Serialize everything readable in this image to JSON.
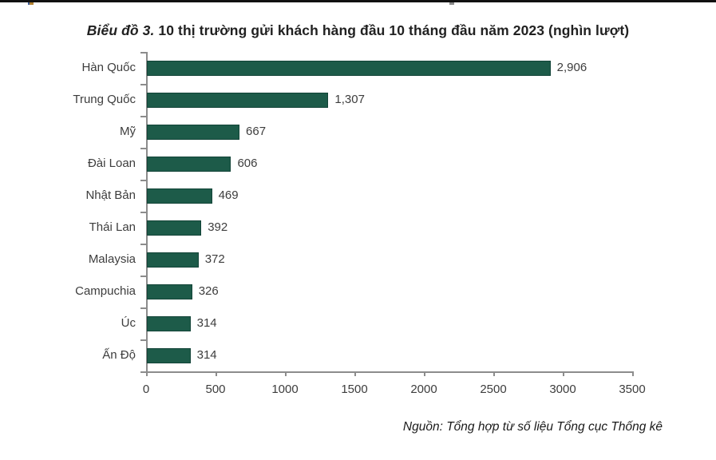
{
  "title": {
    "prefix": "Biểu đồ 3.",
    "rest": " 10 thị trường gửi khách hàng đầu 10 tháng đầu năm 2023 (nghìn lượt)"
  },
  "source_note": "Nguồn: Tổng hợp từ số liệu Tổng cục Thống kê",
  "chart_data": {
    "type": "bar",
    "orientation": "horizontal",
    "title": "Biểu đồ 3. 10 thị trường gửi khách hàng đầu 10 tháng đầu năm 2023 (nghìn lượt)",
    "categories": [
      "Hàn Quốc",
      "Trung Quốc",
      "Mỹ",
      "Đài Loan",
      "Nhật Bản",
      "Thái Lan",
      "Malaysia",
      "Campuchia",
      "Úc",
      "Ấn Độ"
    ],
    "values": [
      2906,
      1307,
      667,
      606,
      469,
      392,
      372,
      326,
      314,
      314
    ],
    "value_labels": [
      "2,906",
      "1,307",
      "667",
      "606",
      "469",
      "392",
      "372",
      "326",
      "314",
      "314"
    ],
    "xlabel": "",
    "ylabel": "",
    "xlim": [
      0,
      3500
    ],
    "x_ticks": [
      0,
      500,
      1000,
      1500,
      2000,
      2500,
      3000,
      3500
    ],
    "x_tick_labels": [
      "0",
      "500",
      "1000",
      "1500",
      "2000",
      "2500",
      "3000",
      "3500"
    ],
    "grid": false,
    "legend": false,
    "bar_color": "#1d5b49",
    "bar_border_color": "#134438",
    "axis_color": "#8c8c8c",
    "data_labels": true
  }
}
